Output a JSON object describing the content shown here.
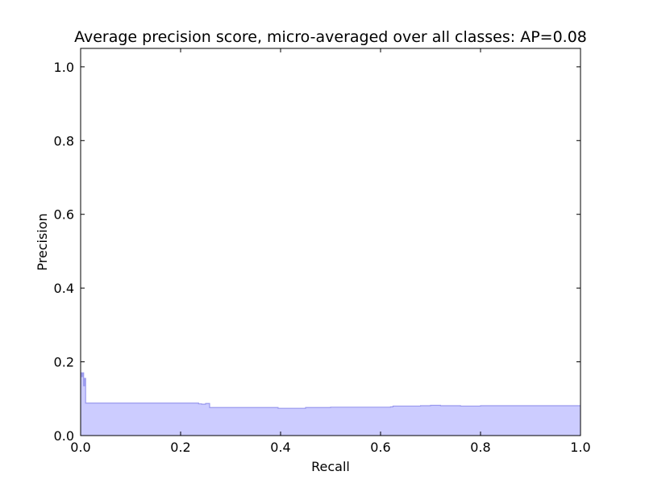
{
  "chart_data": {
    "type": "area",
    "title": "Average precision score, micro-averaged over all classes: AP=0.08",
    "xlabel": "Recall",
    "ylabel": "Precision",
    "xlim": [
      0.0,
      1.0
    ],
    "ylim": [
      0.0,
      1.05
    ],
    "xticks": [
      "0.0",
      "0.2",
      "0.4",
      "0.6",
      "0.8",
      "1.0"
    ],
    "yticks": [
      "0.0",
      "0.2",
      "0.4",
      "0.6",
      "0.8",
      "1.0"
    ],
    "grid": false,
    "legend": "none",
    "step": "post",
    "colors": {
      "fill": "#ccccff",
      "line": "#9999ee",
      "axes": "#000000"
    },
    "series": [
      {
        "recall": [
          0.0,
          0.002,
          0.004,
          0.006,
          0.008,
          0.01,
          0.012,
          0.23,
          0.236,
          0.242,
          0.25,
          0.258,
          0.39,
          0.395,
          0.42,
          0.45,
          0.5,
          0.6,
          0.62,
          0.625,
          0.65,
          0.68,
          0.7,
          0.72,
          0.74,
          0.76,
          0.8,
          1.0
        ],
        "precision": [
          0.17,
          0.16,
          0.17,
          0.135,
          0.155,
          0.088,
          0.088,
          0.088,
          0.086,
          0.085,
          0.087,
          0.076,
          0.076,
          0.074,
          0.074,
          0.076,
          0.077,
          0.077,
          0.078,
          0.08,
          0.08,
          0.081,
          0.082,
          0.081,
          0.081,
          0.08,
          0.081,
          0.081
        ]
      }
    ]
  }
}
